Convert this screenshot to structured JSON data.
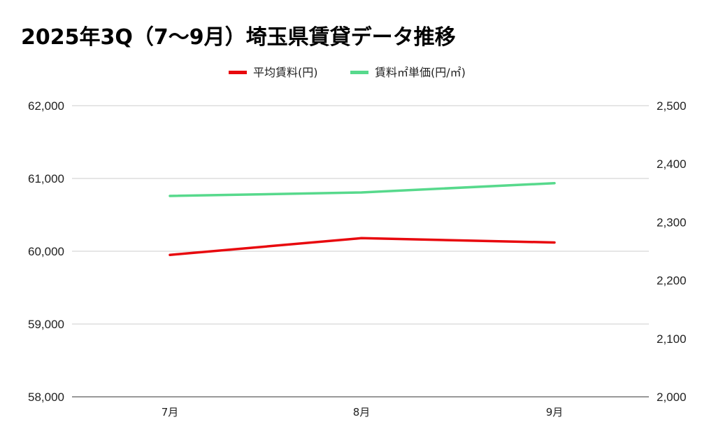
{
  "chart_data": {
    "type": "line",
    "title": "2025年3Q（7〜9月）埼玉県賃貸データ推移",
    "categories": [
      "7月",
      "8月",
      "9月"
    ],
    "y_left": {
      "min": 58000,
      "max": 62000,
      "ticks": [
        58000,
        59000,
        60000,
        61000,
        62000
      ],
      "tick_labels": [
        "58,000",
        "59,000",
        "60,000",
        "61,000",
        "62,000"
      ]
    },
    "y_right": {
      "min": 2000,
      "max": 2500,
      "ticks": [
        2000,
        2100,
        2200,
        2300,
        2400,
        2500
      ],
      "tick_labels": [
        "2,000",
        "2,100",
        "2,200",
        "2,300",
        "2,400",
        "2,500"
      ]
    },
    "series": [
      {
        "name": "平均賃料(円)",
        "axis": "left",
        "color": "#e8090e",
        "values": [
          59950,
          60180,
          60120
        ]
      },
      {
        "name": "賃料㎡単価(円/㎡)",
        "axis": "right",
        "color": "#57d98c",
        "values": [
          2345,
          2351,
          2367
        ]
      }
    ],
    "grid": true,
    "legend_position": "top-center"
  }
}
